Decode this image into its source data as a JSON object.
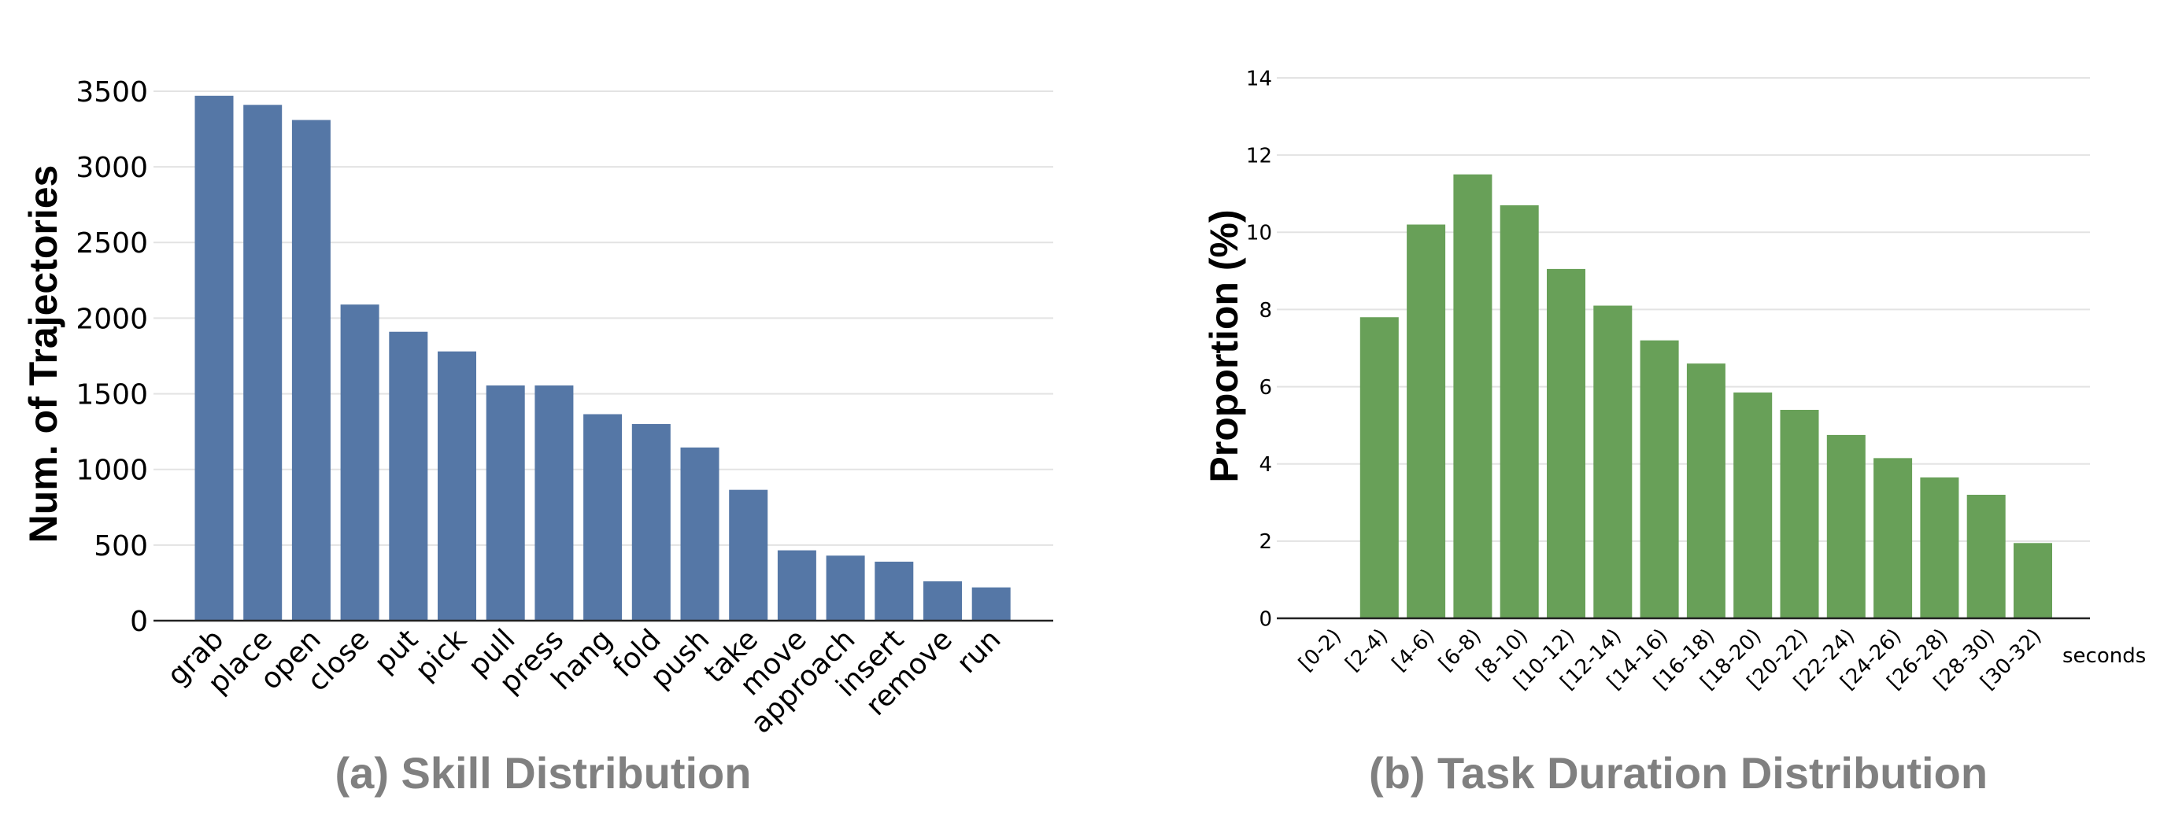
{
  "colors": {
    "skill_bar": "#5577a6",
    "duration_bar": "#68a058",
    "grid": "#e3e3e3",
    "axis": "#222222",
    "caption": "#808080",
    "text": "#000000"
  },
  "chart_data": [
    {
      "type": "bar",
      "caption": "(a) Skill Distribution",
      "xlabel": "",
      "ylabel": "Num. of Trajectories",
      "ylim": [
        0,
        3700
      ],
      "yticks": [
        0,
        500,
        1000,
        1500,
        2000,
        2500,
        3000,
        3500
      ],
      "ytick_labels": [
        "0",
        "500",
        "1000",
        "1500",
        "2000",
        "2500",
        "3000",
        "3500"
      ],
      "grid": true,
      "categories": [
        "grab",
        "place",
        "open",
        "close",
        "put",
        "pick",
        "pull",
        "press",
        "hang",
        "fold",
        "push",
        "take",
        "move",
        "approach",
        "insert",
        "remove",
        "run"
      ],
      "values": [
        3470,
        3410,
        3310,
        2090,
        1910,
        1780,
        1555,
        1555,
        1365,
        1300,
        1145,
        865,
        465,
        430,
        390,
        260,
        220
      ]
    },
    {
      "type": "bar",
      "caption": "(b) Task Duration Distribution",
      "xlabel": "seconds",
      "ylabel": "Proportion (%)",
      "ylim": [
        0,
        14
      ],
      "yticks": [
        0,
        2,
        4,
        6,
        8,
        10,
        12,
        14
      ],
      "ytick_labels": [
        "0",
        "2",
        "4",
        "6",
        "8",
        "10",
        "12",
        "14"
      ],
      "grid": true,
      "categories": [
        "[0-2)",
        "[2-4)",
        "[4-6)",
        "[6-8)",
        "[8-10)",
        "[10-12)",
        "[12-14)",
        "[14-16)",
        "[16-18)",
        "[18-20)",
        "[20-22)",
        "[22-24)",
        "[24-26)",
        "[26-28)",
        "[28-30)",
        "[30-32)"
      ],
      "values": [
        0,
        7.8,
        10.2,
        11.5,
        10.7,
        9.05,
        8.1,
        7.2,
        6.6,
        5.85,
        5.4,
        4.75,
        4.15,
        3.65,
        3.2,
        1.95
      ]
    }
  ]
}
